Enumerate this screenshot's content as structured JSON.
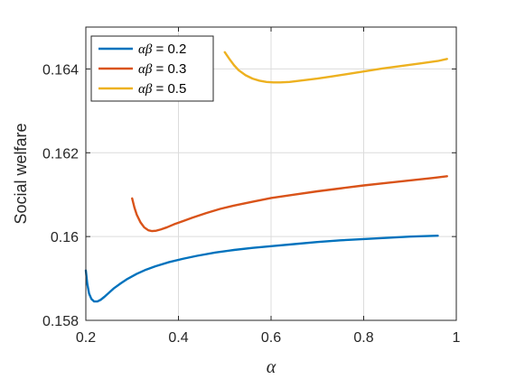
{
  "chart_data": {
    "type": "line",
    "title": "",
    "xlabel": "α",
    "ylabel": "Social welfare",
    "xlim": [
      0.2,
      1.0
    ],
    "ylim": [
      0.158,
      0.165
    ],
    "xticks": [
      0.2,
      0.4,
      0.6,
      0.8,
      1.0
    ],
    "xtick_labels": [
      "0.2",
      "0.4",
      "0.6",
      "0.8",
      "1"
    ],
    "yticks": [
      0.158,
      0.16,
      0.162,
      0.164
    ],
    "ytick_labels": [
      "0.158",
      "0.16",
      "0.162",
      "0.164"
    ],
    "grid": true,
    "legend_position": "top-left",
    "series": [
      {
        "name_symbol": "αβ",
        "name_value": " = 0.2",
        "color": "#0072BD",
        "x": [
          0.2,
          0.203,
          0.207,
          0.212,
          0.218,
          0.225,
          0.232,
          0.24,
          0.25,
          0.26,
          0.275,
          0.29,
          0.31,
          0.33,
          0.35,
          0.38,
          0.41,
          0.44,
          0.48,
          0.52,
          0.56,
          0.6,
          0.65,
          0.7,
          0.75,
          0.8,
          0.85,
          0.9,
          0.96
        ],
        "y": [
          0.15919,
          0.15888,
          0.15864,
          0.15851,
          0.15845,
          0.15845,
          0.15849,
          0.15856,
          0.15866,
          0.15876,
          0.15888,
          0.15899,
          0.15911,
          0.15921,
          0.15929,
          0.15939,
          0.15947,
          0.15954,
          0.15962,
          0.15968,
          0.15973,
          0.15977,
          0.15982,
          0.15987,
          0.15991,
          0.15994,
          0.15997,
          0.16,
          0.16002
        ]
      },
      {
        "name_symbol": "αβ",
        "name_value": " = 0.3",
        "color": "#D95319",
        "x": [
          0.3,
          0.305,
          0.31,
          0.318,
          0.326,
          0.335,
          0.343,
          0.352,
          0.362,
          0.375,
          0.39,
          0.41,
          0.43,
          0.46,
          0.49,
          0.52,
          0.56,
          0.6,
          0.65,
          0.7,
          0.75,
          0.8,
          0.85,
          0.9,
          0.95,
          0.98
        ],
        "y": [
          0.16091,
          0.16069,
          0.16052,
          0.16034,
          0.16022,
          0.16015,
          0.16013,
          0.16014,
          0.16017,
          0.16022,
          0.16029,
          0.16037,
          0.16045,
          0.16056,
          0.16066,
          0.16074,
          0.16083,
          0.16092,
          0.161,
          0.16108,
          0.16115,
          0.16122,
          0.16128,
          0.16134,
          0.1614,
          0.16144
        ]
      },
      {
        "name_symbol": "αβ",
        "name_value": " = 0.5",
        "color": "#EDB120",
        "x": [
          0.5,
          0.51,
          0.52,
          0.53,
          0.545,
          0.56,
          0.575,
          0.59,
          0.605,
          0.62,
          0.64,
          0.67,
          0.7,
          0.73,
          0.76,
          0.8,
          0.84,
          0.88,
          0.92,
          0.96,
          0.98
        ],
        "y": [
          0.1644,
          0.16424,
          0.16409,
          0.16397,
          0.16385,
          0.16377,
          0.16372,
          0.16369,
          0.16368,
          0.16368,
          0.16369,
          0.16373,
          0.16377,
          0.16382,
          0.16387,
          0.16394,
          0.16401,
          0.16407,
          0.16413,
          0.16419,
          0.16424
        ]
      }
    ]
  }
}
